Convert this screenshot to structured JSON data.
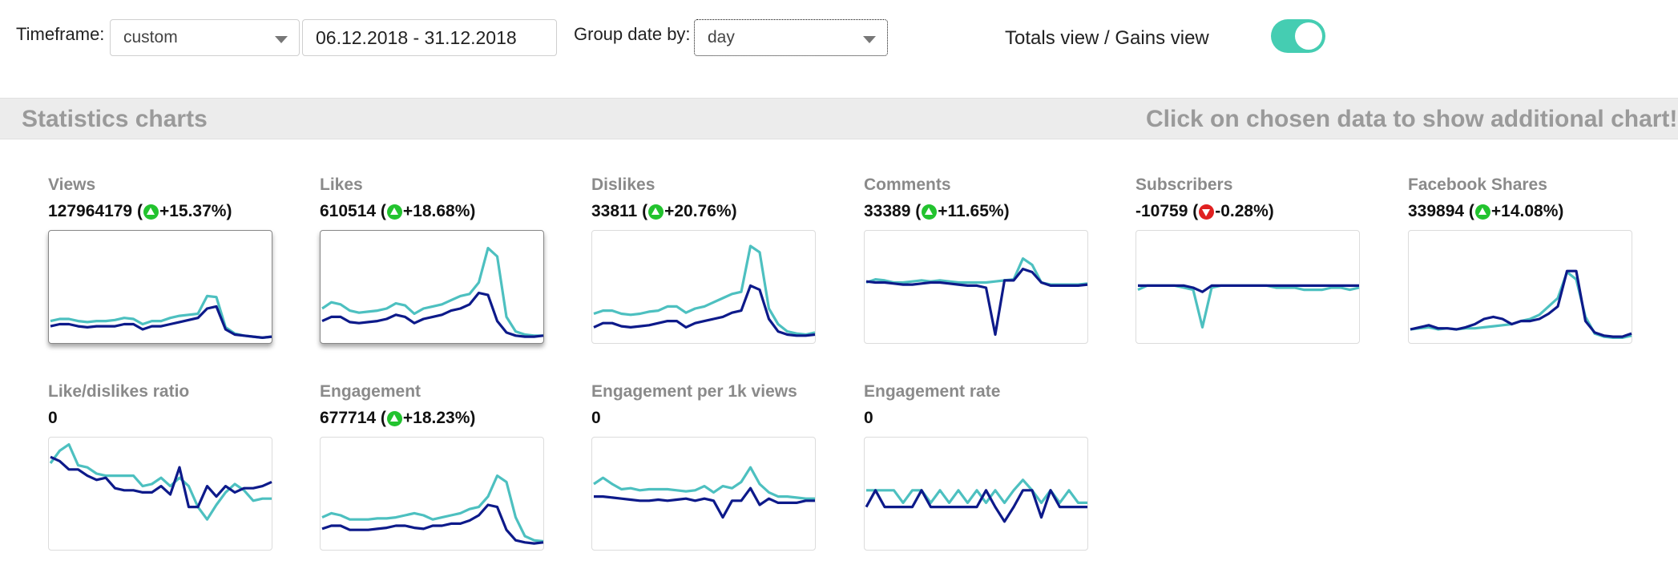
{
  "filters": {
    "timeframe_label": "Timeframe:",
    "timeframe_value": "custom",
    "date_range": "06.12.2018 - 31.12.2018",
    "group_label": "Group date by:",
    "group_value": "day",
    "view_toggle_label": "Totals view / Gains view",
    "toggle_on": true
  },
  "section": {
    "title": "Statistics charts",
    "hint": "Click on chosen data to show additional chart!"
  },
  "colors": {
    "series_light": "#4dc0c0",
    "series_dark": "#0d1a8a",
    "toggle": "#45cdb2",
    "up": "#22c32e",
    "down": "#e02020"
  },
  "cards": [
    {
      "title": "Views",
      "value": "127964179",
      "change": "+15.37%",
      "trend": "up",
      "selected": true,
      "light": [
        18,
        20,
        20,
        18,
        17,
        18,
        18,
        19,
        21,
        20,
        15,
        18,
        18,
        21,
        23,
        24,
        25,
        42,
        41,
        12,
        6,
        4,
        3,
        2,
        3
      ],
      "dark": [
        13,
        15,
        15,
        13,
        12,
        13,
        13,
        13,
        15,
        15,
        10,
        13,
        13,
        15,
        17,
        19,
        21,
        30,
        32,
        10,
        5,
        4,
        3,
        2,
        3
      ]
    },
    {
      "title": "Likes",
      "value": "610514",
      "change": "+18.68%",
      "trend": "up",
      "selected": true,
      "light": [
        30,
        36,
        34,
        28,
        26,
        27,
        28,
        30,
        35,
        33,
        25,
        30,
        32,
        34,
        38,
        42,
        44,
        55,
        88,
        80,
        22,
        8,
        5,
        4,
        4
      ],
      "dark": [
        18,
        22,
        22,
        17,
        16,
        17,
        18,
        20,
        24,
        22,
        16,
        20,
        22,
        24,
        28,
        30,
        34,
        45,
        43,
        18,
        7,
        4,
        3,
        3,
        4
      ]
    },
    {
      "title": "Dislikes",
      "value": "33811",
      "change": "+20.76%",
      "trend": "up",
      "selected": false,
      "light": [
        25,
        28,
        28,
        25,
        24,
        25,
        27,
        28,
        32,
        32,
        26,
        30,
        32,
        36,
        40,
        44,
        46,
        90,
        84,
        30,
        15,
        8,
        6,
        5,
        7
      ],
      "dark": [
        12,
        16,
        16,
        13,
        12,
        13,
        14,
        16,
        18,
        18,
        12,
        16,
        18,
        20,
        22,
        26,
        28,
        52,
        48,
        20,
        8,
        5,
        4,
        4,
        5
      ]
    },
    {
      "title": "Comments",
      "value": "33389",
      "change": "+11.65%",
      "trend": "up",
      "selected": false,
      "light": [
        55,
        58,
        57,
        55,
        55,
        56,
        57,
        56,
        57,
        56,
        55,
        55,
        55,
        55,
        56,
        57,
        58,
        78,
        72,
        55,
        53,
        53,
        53,
        53,
        54
      ],
      "dark": [
        56,
        55,
        55,
        54,
        53,
        53,
        54,
        55,
        55,
        54,
        53,
        52,
        52,
        50,
        5,
        57,
        57,
        68,
        65,
        55,
        52,
        52,
        52,
        52,
        53
      ]
    },
    {
      "title": "Subscribers",
      "value": "-10759",
      "change": "-0.28%",
      "trend": "down",
      "selected": false,
      "light": [
        48,
        52,
        52,
        52,
        52,
        50,
        48,
        12,
        50,
        52,
        52,
        52,
        52,
        52,
        52,
        50,
        50,
        50,
        48,
        48,
        48,
        50,
        50,
        48,
        50
      ],
      "dark": [
        52,
        52,
        52,
        52,
        52,
        52,
        50,
        46,
        52,
        52,
        52,
        52,
        52,
        52,
        52,
        52,
        52,
        52,
        52,
        52,
        52,
        52,
        52,
        52,
        52
      ]
    },
    {
      "title": "Facebook Shares",
      "value": "339894",
      "change": "+14.08%",
      "trend": "up",
      "selected": false,
      "light": [
        10,
        11,
        12,
        10,
        11,
        10,
        11,
        11,
        12,
        13,
        14,
        15,
        18,
        20,
        24,
        32,
        40,
        65,
        58,
        22,
        6,
        3,
        2,
        2,
        4
      ],
      "dark": [
        10,
        12,
        14,
        11,
        11,
        10,
        12,
        15,
        20,
        22,
        20,
        15,
        18,
        18,
        20,
        25,
        32,
        66,
        66,
        18,
        7,
        4,
        3,
        3,
        6
      ]
    },
    {
      "title": "Like/dislikes ratio",
      "value": "0",
      "change": "",
      "trend": "",
      "selected": false,
      "light": [
        80,
        92,
        98,
        78,
        76,
        70,
        68,
        68,
        68,
        68,
        58,
        60,
        66,
        58,
        66,
        58,
        38,
        26,
        40,
        52,
        60,
        54,
        44,
        46,
        46
      ],
      "dark": [
        86,
        82,
        74,
        74,
        68,
        64,
        66,
        56,
        54,
        54,
        52,
        52,
        58,
        50,
        76,
        38,
        38,
        58,
        48,
        58,
        52,
        56,
        56,
        58,
        62
      ]
    },
    {
      "title": "Engagement",
      "value": "677714",
      "change": "+18.23%",
      "trend": "up",
      "selected": false,
      "light": [
        28,
        32,
        30,
        26,
        26,
        26,
        27,
        27,
        28,
        30,
        32,
        30,
        26,
        28,
        30,
        32,
        36,
        38,
        48,
        68,
        62,
        28,
        10,
        6,
        5
      ],
      "dark": [
        17,
        20,
        20,
        16,
        16,
        16,
        17,
        18,
        20,
        20,
        18,
        17,
        20,
        20,
        22,
        22,
        25,
        30,
        40,
        38,
        16,
        6,
        4,
        3,
        4
      ]
    },
    {
      "title": "Engagement per 1k views",
      "value": "0",
      "change": "",
      "trend": "",
      "selected": false,
      "light": [
        60,
        66,
        60,
        55,
        56,
        54,
        55,
        55,
        55,
        54,
        53,
        54,
        58,
        52,
        58,
        56,
        62,
        76,
        60,
        52,
        48,
        48,
        47,
        46,
        46
      ],
      "dark": [
        48,
        48,
        47,
        46,
        45,
        44,
        44,
        45,
        44,
        45,
        46,
        44,
        46,
        44,
        28,
        44,
        44,
        56,
        40,
        46,
        42,
        42,
        42,
        44,
        44
      ]
    },
    {
      "title": "Engagement rate",
      "value": "0",
      "change": "",
      "trend": "",
      "selected": false,
      "light": [
        54,
        54,
        54,
        54,
        42,
        54,
        54,
        42,
        54,
        42,
        54,
        42,
        54,
        42,
        54,
        42,
        54,
        64,
        54,
        42,
        54,
        42,
        54,
        42,
        42
      ],
      "dark": [
        38,
        54,
        38,
        38,
        38,
        38,
        54,
        38,
        38,
        38,
        38,
        38,
        38,
        54,
        38,
        24,
        38,
        54,
        54,
        28,
        54,
        38,
        38,
        38,
        38
      ]
    }
  ]
}
